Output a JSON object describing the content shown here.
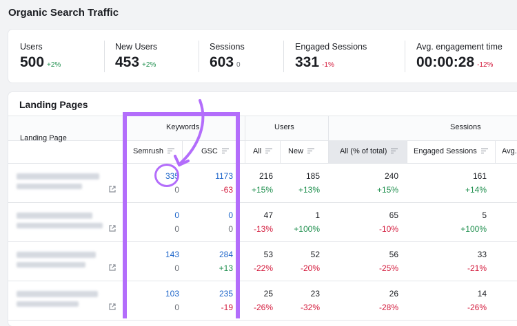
{
  "page_title": "Organic Search Traffic",
  "kpis": [
    {
      "label": "Users",
      "value": "500",
      "delta": "+2%"
    },
    {
      "label": "New Users",
      "value": "453",
      "delta": "+2%"
    },
    {
      "label": "Sessions",
      "value": "603",
      "delta": "0"
    },
    {
      "label": "Engaged Sessions",
      "value": "331",
      "delta": "-1%"
    },
    {
      "label": "Avg. engagement time",
      "value": "00:00:28",
      "delta": "-12%"
    }
  ],
  "landing_pages": {
    "title": "Landing Pages",
    "col_landing_page": "Landing Page",
    "groups": {
      "keywords": "Keywords",
      "users": "Users",
      "sessions": "Sessions"
    },
    "subcols": {
      "semrush": "Semrush",
      "gsc": "GSC",
      "all": "All",
      "new": "New",
      "all_pct": "All (% of total)",
      "engaged": "Engaged Sessions",
      "avg": "Avg."
    },
    "rows": [
      {
        "semrush": "335",
        "semrush_d": "0",
        "gsc": "1173",
        "gsc_d": "-63",
        "users_all": "216",
        "users_all_d": "+15%",
        "users_new": "185",
        "users_new_d": "+13%",
        "sess_all": "240",
        "sess_all_d": "+15%",
        "engaged": "161",
        "engaged_d": "+14%"
      },
      {
        "semrush": "0",
        "semrush_d": "0",
        "gsc": "0",
        "gsc_d": "0",
        "users_all": "47",
        "users_all_d": "-13%",
        "users_new": "1",
        "users_new_d": "+100%",
        "sess_all": "65",
        "sess_all_d": "-10%",
        "engaged": "5",
        "engaged_d": "+100%"
      },
      {
        "semrush": "143",
        "semrush_d": "0",
        "gsc": "284",
        "gsc_d": "+13",
        "users_all": "53",
        "users_all_d": "-22%",
        "users_new": "52",
        "users_new_d": "-20%",
        "sess_all": "56",
        "sess_all_d": "-25%",
        "engaged": "33",
        "engaged_d": "-21%"
      },
      {
        "semrush": "103",
        "semrush_d": "0",
        "gsc": "235",
        "gsc_d": "-19",
        "users_all": "25",
        "users_all_d": "-26%",
        "users_new": "23",
        "users_new_d": "-32%",
        "sess_all": "26",
        "sess_all_d": "-28%",
        "engaged": "14",
        "engaged_d": "-26%"
      }
    ]
  },
  "colors": {
    "positive": "#1f8f4e",
    "negative": "#d3193b",
    "link": "#1a63c9",
    "highlight": "#b36dfb"
  },
  "icons": [
    "sort-icon",
    "external-link-icon",
    "annotation-arrow"
  ]
}
